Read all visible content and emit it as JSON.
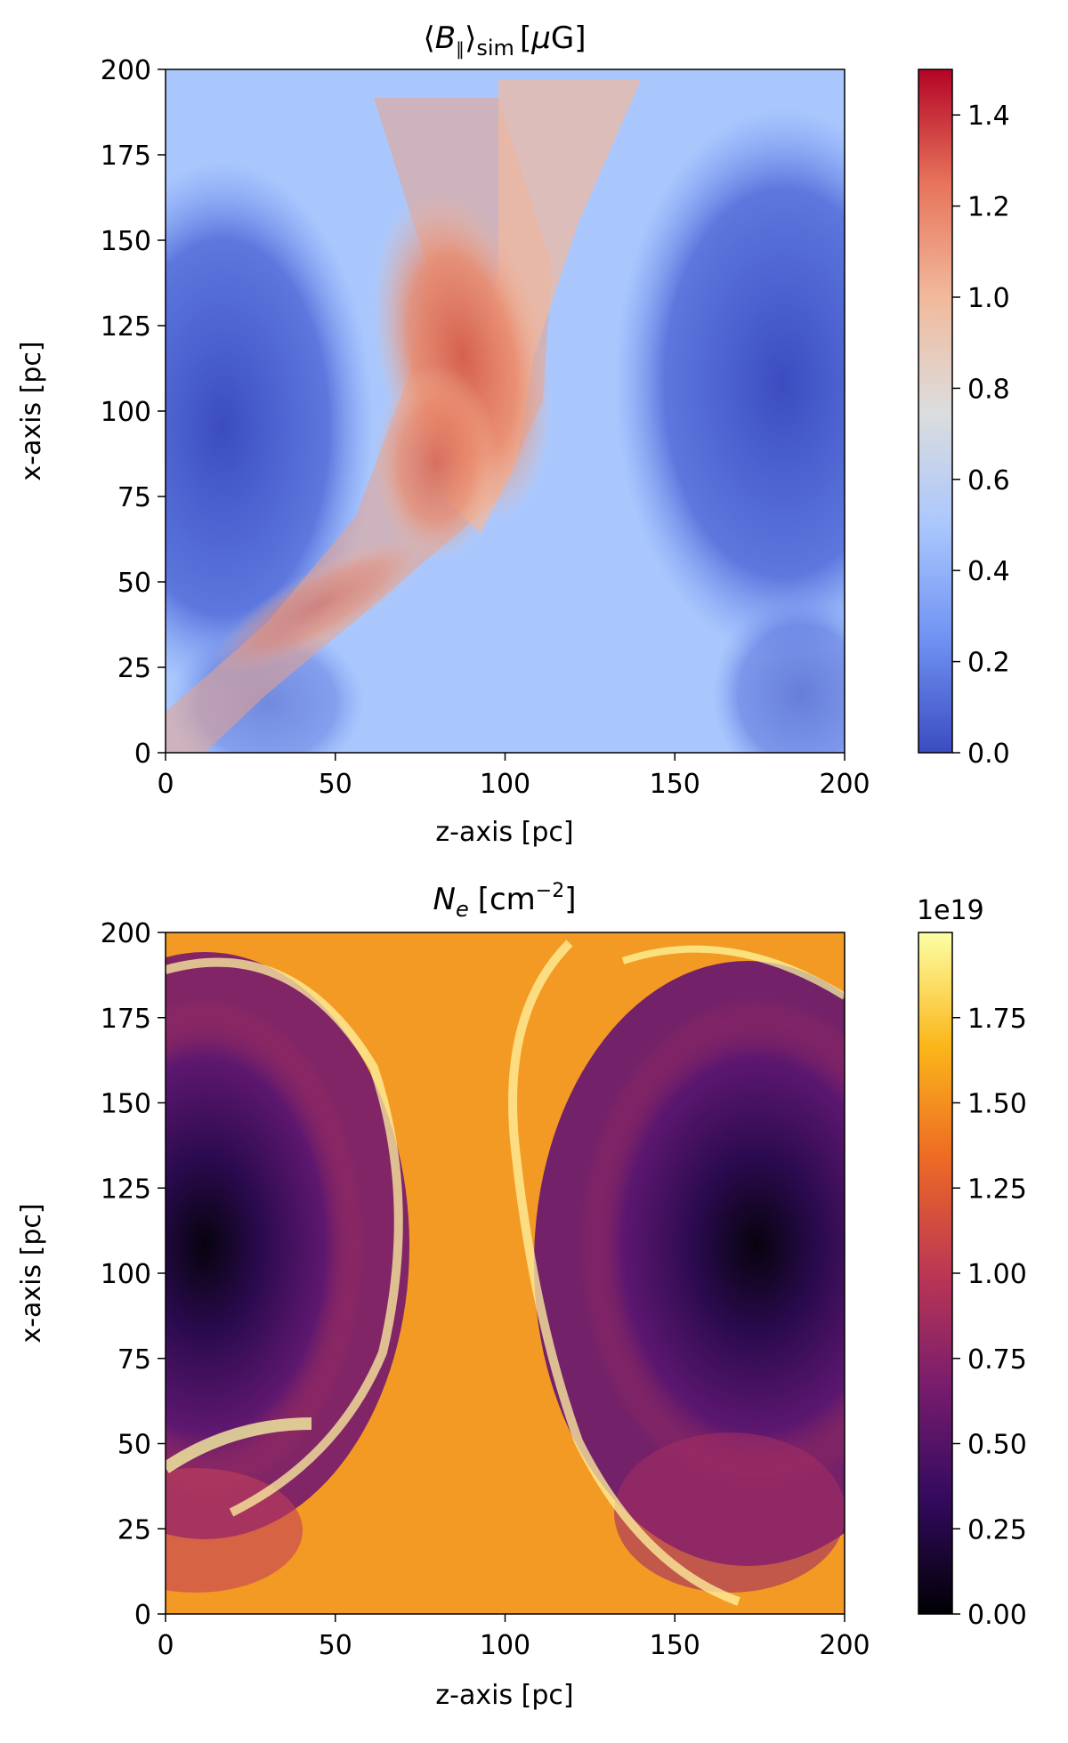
{
  "chart_data": [
    {
      "type": "heatmap",
      "title_parts": {
        "open": "⟨",
        "sym": "B",
        "sub_par": "∥",
        "close": "⟩",
        "sub_sim": "sim",
        "unit_open": "[",
        "mu": "μ",
        "unit_rest": "G]"
      },
      "xlabel": "z-axis [pc]",
      "ylabel": "x-axis [pc]",
      "xlim": [
        0,
        200
      ],
      "ylim": [
        0,
        200
      ],
      "x_ticks": [
        0,
        50,
        100,
        150,
        200
      ],
      "y_ticks": [
        0,
        25,
        50,
        75,
        100,
        125,
        150,
        175,
        200
      ],
      "colormap": "coolwarm",
      "colorbar": {
        "range": [
          0.0,
          1.5
        ],
        "ticks": [
          "0.0",
          "0.2",
          "0.4",
          "0.6",
          "0.8",
          "1.0",
          "1.2",
          "1.4"
        ],
        "colors": [
          "#3b4cc0",
          "#7092f3",
          "#aac7fd",
          "#dcdddd",
          "#f2b99c",
          "#e7745b",
          "#b40426"
        ]
      },
      "field_description_values": {
        "center_band_max": 1.3,
        "side_regions_min": 0.05
      }
    },
    {
      "type": "heatmap",
      "title_parts": {
        "sym": "N",
        "sub_e": "e",
        "unit_open": "[cm",
        "sup": "−2",
        "unit_close": "]"
      },
      "xlabel": "z-axis [pc]",
      "ylabel": "x-axis [pc]",
      "xlim": [
        0,
        200
      ],
      "ylim": [
        0,
        200
      ],
      "x_ticks": [
        0,
        50,
        100,
        150,
        200
      ],
      "y_ticks": [
        0,
        25,
        50,
        75,
        100,
        125,
        150,
        175,
        200
      ],
      "colormap": "inferno",
      "colorbar": {
        "range": [
          0.0,
          2.0
        ],
        "offset_text": "1e19",
        "ticks": [
          "0.00",
          "0.25",
          "0.50",
          "0.75",
          "1.00",
          "1.25",
          "1.50",
          "1.75"
        ],
        "colors": [
          "#000004",
          "#320a5e",
          "#781c6d",
          "#bb3754",
          "#ed6925",
          "#fbb61a",
          "#fcffa4"
        ]
      }
    }
  ]
}
